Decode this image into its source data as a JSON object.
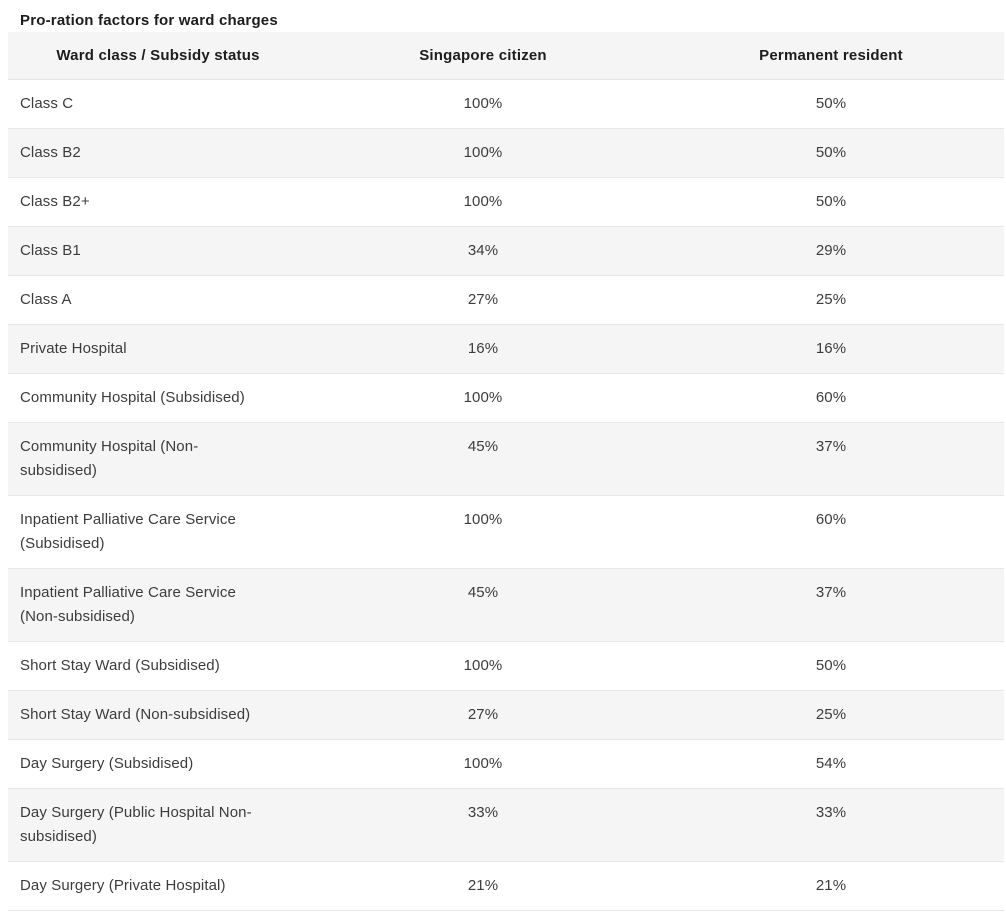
{
  "title": "Pro-ration factors for ward charges",
  "colors": {
    "stripe_row": "#f5f5f5",
    "row_border": "#e7e7e7",
    "heading_text": "#1d1d1d",
    "body_text": "#3c3c3c"
  },
  "table": {
    "columns": [
      "Ward class / Subsidy status",
      "Singapore citizen",
      "Permanent resident"
    ],
    "rows": [
      {
        "ward": "Class C",
        "citizen": "100%",
        "pr": "50%"
      },
      {
        "ward": "Class B2",
        "citizen": "100%",
        "pr": "50%"
      },
      {
        "ward": "Class B2+",
        "citizen": "100%",
        "pr": "50%"
      },
      {
        "ward": "Class B1",
        "citizen": "34%",
        "pr": "29%"
      },
      {
        "ward": "Class A",
        "citizen": "27%",
        "pr": "25%"
      },
      {
        "ward": "Private Hospital",
        "citizen": "16%",
        "pr": "16%"
      },
      {
        "ward": "Community Hospital (Subsidised)",
        "citizen": "100%",
        "pr": "60%"
      },
      {
        "ward": "Community Hospital (Non-\nsubsidised)",
        "citizen": "45%",
        "pr": "37%"
      },
      {
        "ward": "Inpatient Palliative Care Service\n(Subsidised)",
        "citizen": "100%",
        "pr": "60%"
      },
      {
        "ward": "Inpatient Palliative Care Service\n(Non-subsidised)",
        "citizen": "45%",
        "pr": "37%"
      },
      {
        "ward": "Short Stay Ward (Subsidised)",
        "citizen": "100%",
        "pr": "50%"
      },
      {
        "ward": "Short Stay Ward (Non-subsidised)",
        "citizen": "27%",
        "pr": "25%"
      },
      {
        "ward": "Day Surgery (Subsidised)",
        "citizen": "100%",
        "pr": "54%"
      },
      {
        "ward": "Day Surgery (Public Hospital Non-\nsubsidised)",
        "citizen": "33%",
        "pr": "33%"
      },
      {
        "ward": "Day Surgery (Private Hospital)",
        "citizen": "21%",
        "pr": "21%"
      }
    ]
  }
}
